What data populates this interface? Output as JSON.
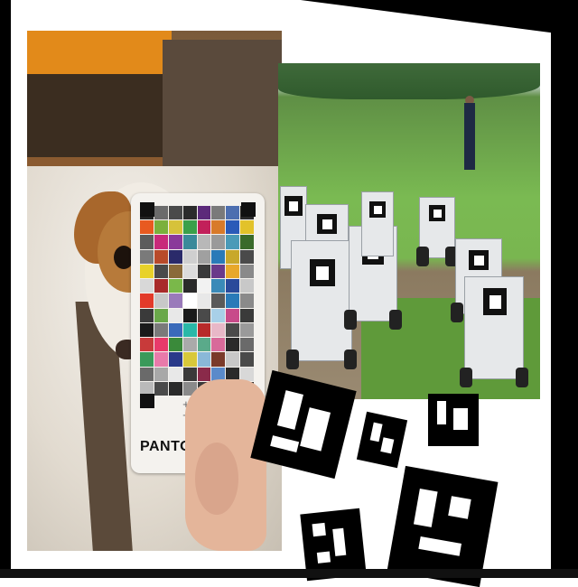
{
  "card": {
    "brand": "PANTONE",
    "crosses": "+ +\n+ +"
  },
  "swatches": [
    "#222222",
    "#6b6b6b",
    "#4a4a4a",
    "#2b2b2b",
    "#5c2a7a",
    "#7a7a7a",
    "#4d6fb0",
    "#2a2a2a",
    "#e85a20",
    "#7ab03c",
    "#d6c23a",
    "#3aa04a",
    "#c2205a",
    "#d87a2a",
    "#2a5ab8",
    "#e2c22a",
    "#5c5c5c",
    "#c82a7a",
    "#8a3a9a",
    "#3a8a9a",
    "#b8b8b8",
    "#9a9a9a",
    "#4a9ab8",
    "#3a6a2a",
    "#7a7a7a",
    "#b84a2a",
    "#2a2a6a",
    "#cfcfcf",
    "#a0a0a0",
    "#2a7ab8",
    "#c8a82a",
    "#4a4a4a",
    "#e8d22a",
    "#4a4a4a",
    "#8a6a3a",
    "#dcdcdc",
    "#3a3a3a",
    "#6a3a8a",
    "#e8a82a",
    "#8a8a8a",
    "#d8d8d8",
    "#a82a2a",
    "#7ab84a",
    "#2a2a2a",
    "#f2f2f2",
    "#3a8ab8",
    "#2a4a9a",
    "#c8c8c8",
    "#e23a2a",
    "#c8c8c8",
    "#9a7aba",
    "#ffffff",
    "#e8e8e8",
    "#5a5a5a",
    "#2a7ab8",
    "#8a8a8a",
    "#3a3a3a",
    "#6aa84a",
    "#e8e8e8",
    "#1a1a1a",
    "#4a4a4a",
    "#a8d0e8",
    "#c84a8a",
    "#3a3a3a",
    "#1a1a1a",
    "#7a7a7a",
    "#3a6aba",
    "#2ab8a8",
    "#b82a2a",
    "#e8b8c8",
    "#4a4a4a",
    "#9a9a9a",
    "#c83a3a",
    "#e83a6a",
    "#3a8a3a",
    "#aaaaaa",
    "#5aaa8a",
    "#d86a9a",
    "#2a2a2a",
    "#6a6a6a",
    "#3a9a5a",
    "#e87aaa",
    "#2a3a8a",
    "#d8c83a",
    "#8ab8d8",
    "#7a3a2a",
    "#c8c8c8",
    "#4a4a4a",
    "#6a6a6a",
    "#a8a8a8",
    "#e8e8e8",
    "#3a3a3a",
    "#8a2a4a",
    "#5a8aca",
    "#2a2a2a",
    "#d8d8d8",
    "#bababa",
    "#4a4a4a",
    "#2a2a2a",
    "#8a8a8a",
    "#3a3a3a",
    "#aaaaaa",
    "#5a5a5a",
    "#2a2a2a"
  ]
}
